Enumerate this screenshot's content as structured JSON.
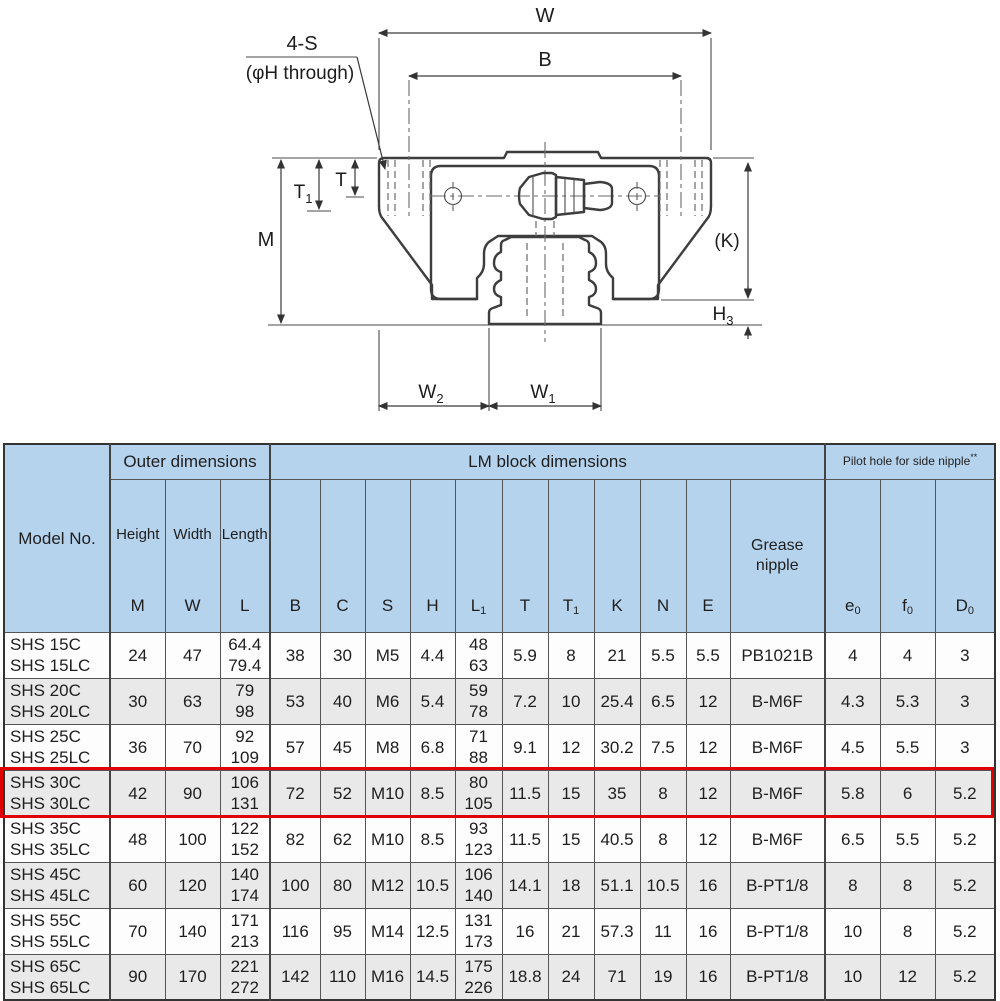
{
  "diagram": {
    "labels": {
      "w": "W",
      "b": "B",
      "four_s": "4-S",
      "phi_h": "(φH through)",
      "t": "T",
      "t1": {
        "main": "T",
        "sub": "1"
      },
      "m": "M",
      "k": "(K)",
      "h3": {
        "main": "H",
        "sub": "3"
      },
      "w2": {
        "main": "W",
        "sub": "2"
      },
      "w1": {
        "main": "W",
        "sub": "1"
      }
    }
  },
  "table": {
    "groups": {
      "model": "Model No.",
      "outer": "Outer dimensions",
      "lm_block": "LM block dimensions",
      "pilot": {
        "title": "Pilot hole for side nipple",
        "mark": "**"
      }
    },
    "columns": [
      {
        "name": "Height",
        "sym": "M",
        "sub": ""
      },
      {
        "name": "Width",
        "sym": "W",
        "sub": ""
      },
      {
        "name": "Length",
        "sym": "L",
        "sub": ""
      },
      {
        "name": "",
        "sym": "B",
        "sub": ""
      },
      {
        "name": "",
        "sym": "C",
        "sub": ""
      },
      {
        "name": "",
        "sym": "S",
        "sub": ""
      },
      {
        "name": "",
        "sym": "H",
        "sub": ""
      },
      {
        "name": "",
        "sym": "L",
        "sub": "1"
      },
      {
        "name": "",
        "sym": "T",
        "sub": ""
      },
      {
        "name": "",
        "sym": "T",
        "sub": "1"
      },
      {
        "name": "",
        "sym": "K",
        "sub": ""
      },
      {
        "name": "",
        "sym": "N",
        "sub": ""
      },
      {
        "name": "",
        "sym": "E",
        "sub": ""
      },
      {
        "name": "Grease nipple",
        "sym": "",
        "sub": ""
      },
      {
        "name": "",
        "sym": "e",
        "sub": "0"
      },
      {
        "name": "",
        "sym": "f",
        "sub": "0"
      },
      {
        "name": "",
        "sym": "D",
        "sub": "0"
      }
    ],
    "rows": [
      {
        "model": "SHS 15C\nSHS 15LC",
        "shaded": false,
        "highlight": false,
        "values": [
          "24",
          "47",
          "64.4\n79.4",
          "38",
          "30",
          "M5",
          "4.4",
          "48\n63",
          "5.9",
          "8",
          "21",
          "5.5",
          "5.5",
          "PB1021B",
          "4",
          "4",
          "3"
        ]
      },
      {
        "model": "SHS 20C\nSHS 20LC",
        "shaded": true,
        "highlight": false,
        "values": [
          "30",
          "63",
          "79\n98",
          "53",
          "40",
          "M6",
          "5.4",
          "59\n78",
          "7.2",
          "10",
          "25.4",
          "6.5",
          "12",
          "B-M6F",
          "4.3",
          "5.3",
          "3"
        ]
      },
      {
        "model": "SHS 25C\nSHS 25LC",
        "shaded": false,
        "highlight": false,
        "values": [
          "36",
          "70",
          "92\n109",
          "57",
          "45",
          "M8",
          "6.8",
          "71\n88",
          "9.1",
          "12",
          "30.2",
          "7.5",
          "12",
          "B-M6F",
          "4.5",
          "5.5",
          "3"
        ]
      },
      {
        "model": "SHS 30C\nSHS 30LC",
        "shaded": true,
        "highlight": true,
        "values": [
          "42",
          "90",
          "106\n131",
          "72",
          "52",
          "M10",
          "8.5",
          "80\n105",
          "11.5",
          "15",
          "35",
          "8",
          "12",
          "B-M6F",
          "5.8",
          "6",
          "5.2"
        ]
      },
      {
        "model": "SHS 35C\nSHS 35LC",
        "shaded": false,
        "highlight": false,
        "values": [
          "48",
          "100",
          "122\n152",
          "82",
          "62",
          "M10",
          "8.5",
          "93\n123",
          "11.5",
          "15",
          "40.5",
          "8",
          "12",
          "B-M6F",
          "6.5",
          "5.5",
          "5.2"
        ]
      },
      {
        "model": "SHS 45C\nSHS 45LC",
        "shaded": true,
        "highlight": false,
        "values": [
          "60",
          "120",
          "140\n174",
          "100",
          "80",
          "M12",
          "10.5",
          "106\n140",
          "14.1",
          "18",
          "51.1",
          "10.5",
          "16",
          "B-PT1/8",
          "8",
          "8",
          "5.2"
        ]
      },
      {
        "model": "SHS 55C\nSHS 55LC",
        "shaded": false,
        "highlight": false,
        "values": [
          "70",
          "140",
          "171\n213",
          "116",
          "95",
          "M14",
          "12.5",
          "131\n173",
          "16",
          "21",
          "57.3",
          "11",
          "16",
          "B-PT1/8",
          "10",
          "8",
          "5.2"
        ]
      },
      {
        "model": "SHS 65C\nSHS 65LC",
        "shaded": true,
        "highlight": false,
        "values": [
          "90",
          "170",
          "221\n272",
          "142",
          "110",
          "M16",
          "14.5",
          "175\n226",
          "18.8",
          "24",
          "71",
          "19",
          "16",
          "B-PT1/8",
          "10",
          "12",
          "5.2"
        ]
      }
    ]
  },
  "colors": {
    "header_bg": "#b6d3ee",
    "row_shaded": "#e9e9e9",
    "highlight_border": "#e00000",
    "line": "#3d3d3d"
  }
}
